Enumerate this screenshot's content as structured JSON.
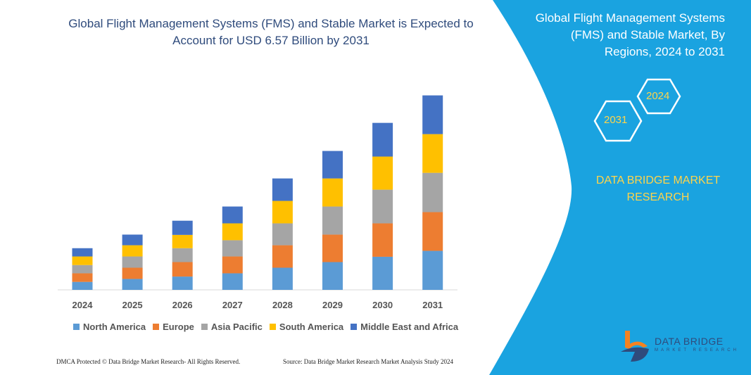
{
  "title": "Global Flight Management Systems (FMS) and Stable Market is Expected to Account for USD 6.57 Billion by 2031",
  "side_title": "Global Flight Management Systems (FMS) and Stable Market, By Regions, 2024 to 2031",
  "hex_labels": [
    "2031",
    "2024"
  ],
  "brand": "DATA BRIDGE MARKET RESEARCH",
  "logo": {
    "name": "DATA BRIDGE",
    "sub": "MARKET RESEARCH"
  },
  "footer": {
    "left": "DMCA Protected © Data Bridge Market Research-  All Rights Reserved.",
    "right": "Source: Data Bridge Market Research  Market Analysis Study 2024"
  },
  "colors": {
    "panel": "#1aa3e0",
    "accent": "#ffd44a"
  },
  "chart_data": {
    "type": "bar",
    "stacked": true,
    "title": "",
    "xlabel": "",
    "ylabel": "",
    "grid": false,
    "legend_position": "bottom",
    "categories": [
      "2024",
      "2025",
      "2026",
      "2027",
      "2028",
      "2029",
      "2030",
      "2031"
    ],
    "series": [
      {
        "name": "North America",
        "color": "#5b9bd5",
        "values": [
          0.27,
          0.37,
          0.45,
          0.56,
          0.75,
          0.94,
          1.12,
          1.32
        ]
      },
      {
        "name": "Europe",
        "color": "#ed7d31",
        "values": [
          0.29,
          0.38,
          0.49,
          0.57,
          0.76,
          0.93,
          1.13,
          1.31
        ]
      },
      {
        "name": "Asia Pacific",
        "color": "#a5a5a5",
        "values": [
          0.28,
          0.38,
          0.47,
          0.55,
          0.74,
          0.95,
          1.14,
          1.33
        ]
      },
      {
        "name": "South America",
        "color": "#ffc000",
        "values": [
          0.29,
          0.38,
          0.45,
          0.57,
          0.76,
          0.95,
          1.12,
          1.31
        ]
      },
      {
        "name": "Middle East and Africa",
        "color": "#4472c4",
        "values": [
          0.28,
          0.36,
          0.48,
          0.57,
          0.76,
          0.93,
          1.14,
          1.31
        ]
      }
    ]
  }
}
